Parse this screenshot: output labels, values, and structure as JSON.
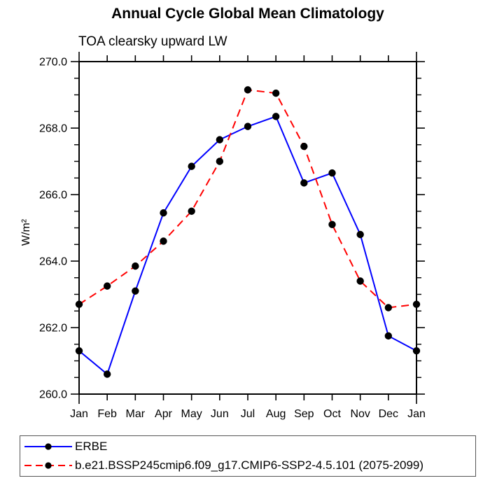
{
  "title": "Annual Cycle Global Mean Climatology",
  "subtitle": "TOA clearsky upward LW",
  "ylabel": "W/m²",
  "colors": {
    "erbe_line": "#0000ff",
    "model_line": "#ff0000",
    "marker": "#000000",
    "axis": "#000000",
    "legend_border": "#555555"
  },
  "chart_data": {
    "type": "line",
    "categories": [
      "Jan",
      "Feb",
      "Mar",
      "Apr",
      "May",
      "Jun",
      "Jul",
      "Aug",
      "Sep",
      "Oct",
      "Nov",
      "Dec",
      "Jan"
    ],
    "series": [
      {
        "name": "ERBE",
        "color": "#0000ff",
        "style": "solid",
        "marker": "black-dot",
        "values": [
          261.3,
          260.6,
          263.1,
          265.45,
          266.85,
          267.65,
          268.05,
          268.35,
          266.35,
          266.65,
          264.8,
          261.75,
          261.3
        ]
      },
      {
        "name": "b.e21.BSSP245cmip6.f09_g17.CMIP6-SSP2-4.5.101 (2075-2099)",
        "color": "#ff0000",
        "style": "dashed",
        "marker": "black-dot",
        "values": [
          262.7,
          263.25,
          263.85,
          264.6,
          265.5,
          267.0,
          269.15,
          269.05,
          267.45,
          265.1,
          263.4,
          262.6,
          262.7
        ]
      }
    ],
    "title": "Annual Cycle Global Mean Climatology",
    "subtitle": "TOA clearsky upward LW",
    "xlabel": "",
    "ylabel": "W/m²",
    "ylim": [
      260.0,
      270.0
    ],
    "yticks_major": [
      260.0,
      262.0,
      264.0,
      266.0,
      268.0,
      270.0
    ],
    "ytick_labels": [
      "260.0",
      "262.0",
      "264.0",
      "266.0",
      "268.0",
      "270.0"
    ],
    "yminor_step": 0.5,
    "grid": false,
    "legend_position": "bottom-left-box"
  }
}
